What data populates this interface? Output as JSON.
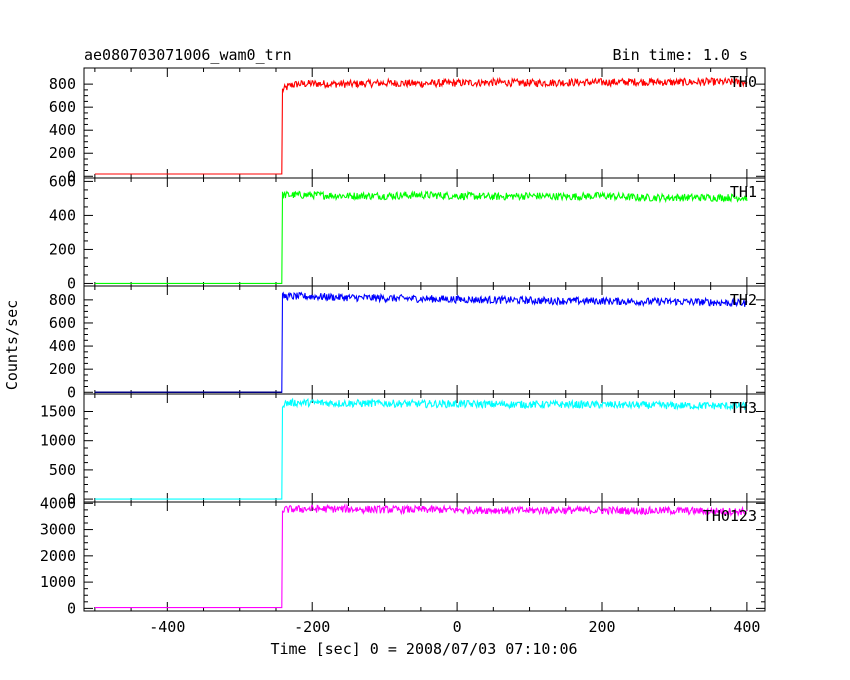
{
  "header": {
    "title": "ae080703071006_wam0_trn",
    "bin_time": "Bin time: 1.0 s"
  },
  "axes": {
    "ylabel": "Counts/sec",
    "xlabel": "Time [sec] 0 = 2008/07/03 07:10:06"
  },
  "chart_data": [
    {
      "type": "line",
      "name": "TH0",
      "color": "#ff0000",
      "xlim": [
        -515,
        425
      ],
      "ylim": [
        -15,
        940
      ],
      "yticks": [
        0,
        200,
        400,
        600,
        800
      ],
      "x": [
        -500,
        -242,
        -241,
        -238,
        -230,
        -220,
        -200,
        -150,
        -100,
        -50,
        0,
        50,
        100,
        150,
        200,
        250,
        300,
        350,
        400
      ],
      "y": [
        20,
        20,
        750,
        760,
        790,
        800,
        805,
        800,
        810,
        805,
        810,
        815,
        810,
        815,
        815,
        820,
        815,
        820,
        815
      ]
    },
    {
      "type": "line",
      "name": "TH1",
      "color": "#00ff00",
      "xlim": [
        -515,
        425
      ],
      "ylim": [
        -15,
        620
      ],
      "yticks": [
        0,
        200,
        400,
        600
      ],
      "x": [
        -500,
        -242,
        -241,
        -230,
        -200,
        -150,
        -100,
        -50,
        0,
        50,
        100,
        150,
        200,
        250,
        300,
        350,
        400
      ],
      "y": [
        0,
        0,
        520,
        520,
        520,
        515,
        515,
        520,
        515,
        510,
        515,
        510,
        515,
        505,
        505,
        505,
        505
      ]
    },
    {
      "type": "line",
      "name": "TH2",
      "color": "#0000ff",
      "xlim": [
        -515,
        425
      ],
      "ylim": [
        -15,
        920
      ],
      "yticks": [
        0,
        200,
        400,
        600,
        800
      ],
      "x": [
        -500,
        -242,
        -241,
        -230,
        -200,
        -150,
        -100,
        -50,
        0,
        50,
        100,
        150,
        200,
        250,
        300,
        350,
        400
      ],
      "y": [
        0,
        0,
        830,
        830,
        830,
        820,
        815,
        810,
        805,
        800,
        795,
        790,
        790,
        785,
        785,
        780,
        770
      ]
    },
    {
      "type": "line",
      "name": "TH3",
      "color": "#00ffff",
      "xlim": [
        -515,
        425
      ],
      "ylim": [
        -50,
        1800
      ],
      "yticks": [
        0,
        500,
        1000,
        1500
      ],
      "x": [
        -500,
        -242,
        -241,
        -230,
        -200,
        -150,
        -100,
        -50,
        0,
        50,
        100,
        150,
        200,
        250,
        300,
        350,
        400
      ],
      "y": [
        0,
        0,
        1630,
        1650,
        1650,
        1640,
        1640,
        1630,
        1630,
        1625,
        1620,
        1620,
        1615,
        1610,
        1600,
        1600,
        1590
      ]
    },
    {
      "type": "line",
      "name": "TH0123",
      "color": "#ff00ff",
      "xlim": [
        -515,
        425
      ],
      "ylim": [
        -100,
        4050
      ],
      "yticks": [
        0,
        1000,
        2000,
        3000,
        4000
      ],
      "x": [
        -500,
        -242,
        -241,
        -230,
        -200,
        -150,
        -100,
        -50,
        0,
        50,
        100,
        150,
        200,
        250,
        300,
        350,
        400
      ],
      "y": [
        30,
        30,
        3750,
        3770,
        3790,
        3780,
        3760,
        3760,
        3750,
        3740,
        3730,
        3740,
        3730,
        3720,
        3720,
        3700,
        3690
      ]
    }
  ],
  "xticks": [
    -400,
    -200,
    0,
    200,
    400
  ]
}
